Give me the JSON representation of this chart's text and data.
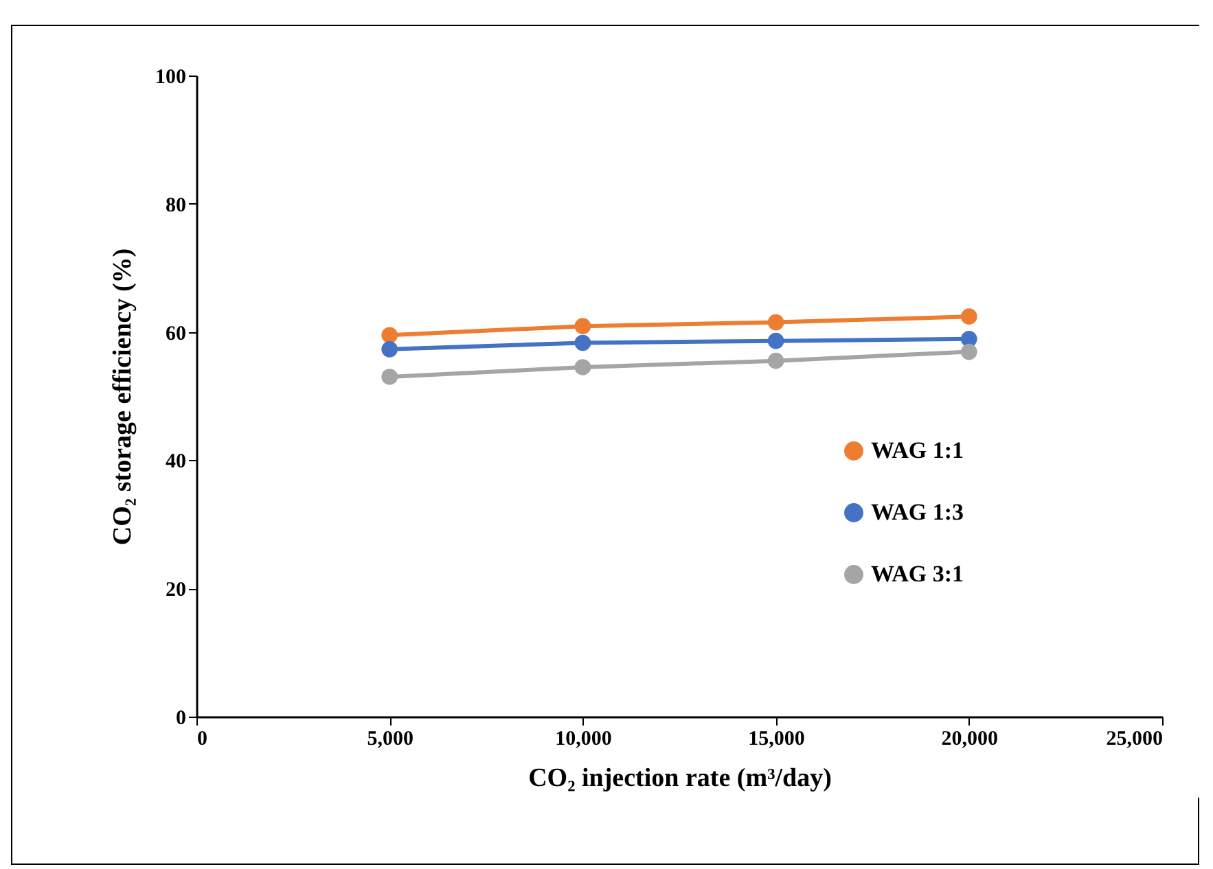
{
  "chart_data": {
    "type": "line",
    "xlabel": "CO₂ injection rate (m³/day)",
    "ylabel": "CO₂ storage efficiency (%)",
    "x": [
      5000,
      10000,
      15000,
      20000
    ],
    "series": [
      {
        "name": "WAG 1:1",
        "color": "#ed7d31",
        "values": [
          59.5,
          60.9,
          61.5,
          62.4
        ]
      },
      {
        "name": "WAG 1:3",
        "color": "#4472c4",
        "values": [
          57.3,
          58.3,
          58.6,
          58.9
        ]
      },
      {
        "name": "WAG 3:1",
        "color": "#a5a5a5",
        "values": [
          53.0,
          54.5,
          55.5,
          56.9
        ]
      }
    ],
    "xlim": [
      0,
      25000
    ],
    "xticks": [
      {
        "value": 0,
        "label": "0"
      },
      {
        "value": 5000,
        "label": "5,000"
      },
      {
        "value": 10000,
        "label": "10,000"
      },
      {
        "value": 15000,
        "label": "15,000"
      },
      {
        "value": 20000,
        "label": "20,000"
      },
      {
        "value": 25000,
        "label": "25,000"
      }
    ],
    "ylim": [
      0,
      100
    ],
    "yticks": [
      0,
      20,
      40,
      60,
      80,
      100
    ],
    "grid": false,
    "legend": "right",
    "marker": "circle",
    "line_style": "solid"
  }
}
